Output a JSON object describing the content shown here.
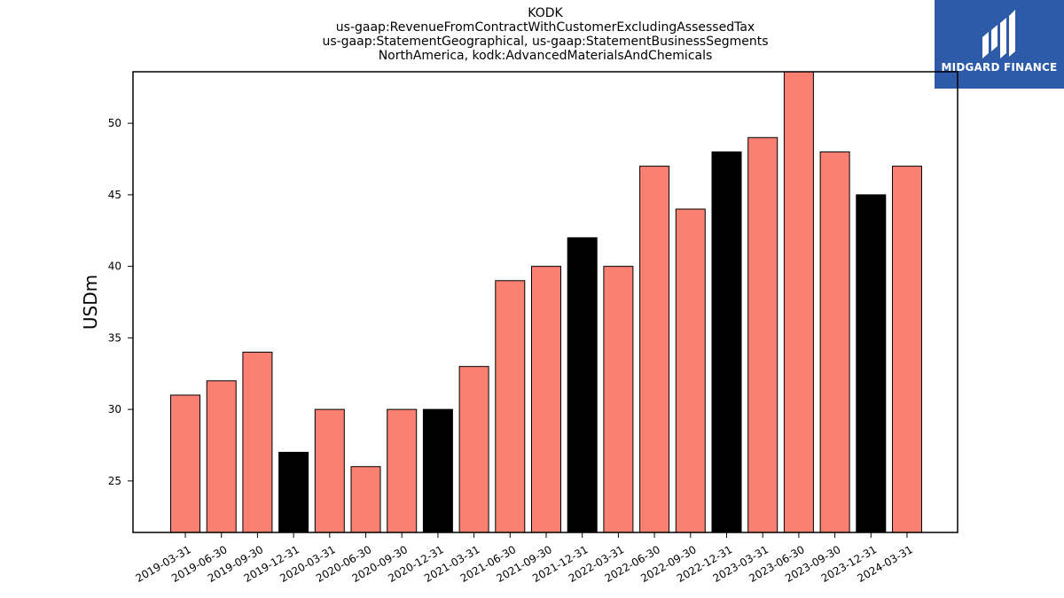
{
  "chart_data": {
    "type": "bar",
    "title_lines": [
      "KODK",
      "us-gaap:RevenueFromContractWithCustomerExcludingAssessedTax",
      "us-gaap:StatementGeographical, us-gaap:StatementBusinessSegments",
      "NorthAmerica, kodk:AdvancedMaterialsAndChemicals"
    ],
    "xlabel": "",
    "ylabel": "USDm",
    "ylim": [
      21.4,
      53.6
    ],
    "yticks": [
      25,
      30,
      35,
      40,
      45,
      50
    ],
    "categories": [
      "2019-03-31",
      "2019-06-30",
      "2019-09-30",
      "2019-12-31",
      "2020-03-31",
      "2020-06-30",
      "2020-09-30",
      "2020-12-31",
      "2021-03-31",
      "2021-06-30",
      "2021-09-30",
      "2021-12-31",
      "2022-03-31",
      "2022-06-30",
      "2022-09-30",
      "2022-12-31",
      "2023-03-31",
      "2023-06-30",
      "2023-09-30",
      "2023-12-31",
      "2024-03-31"
    ],
    "values": [
      31,
      32,
      34,
      27,
      30,
      26,
      30,
      30,
      33,
      39,
      40,
      42,
      40,
      47,
      44,
      48,
      49,
      54,
      48,
      45,
      47
    ],
    "bar_colors": [
      "#fa8072",
      "#fa8072",
      "#fa8072",
      "#000000",
      "#fa8072",
      "#fa8072",
      "#fa8072",
      "#000000",
      "#fa8072",
      "#fa8072",
      "#fa8072",
      "#000000",
      "#fa8072",
      "#fa8072",
      "#fa8072",
      "#000000",
      "#fa8072",
      "#fa8072",
      "#fa8072",
      "#000000",
      "#fa8072"
    ],
    "grid": false,
    "legend": "none"
  },
  "logo": {
    "text": "MIDGARD FINANCE",
    "background": "#2d5aa9"
  }
}
